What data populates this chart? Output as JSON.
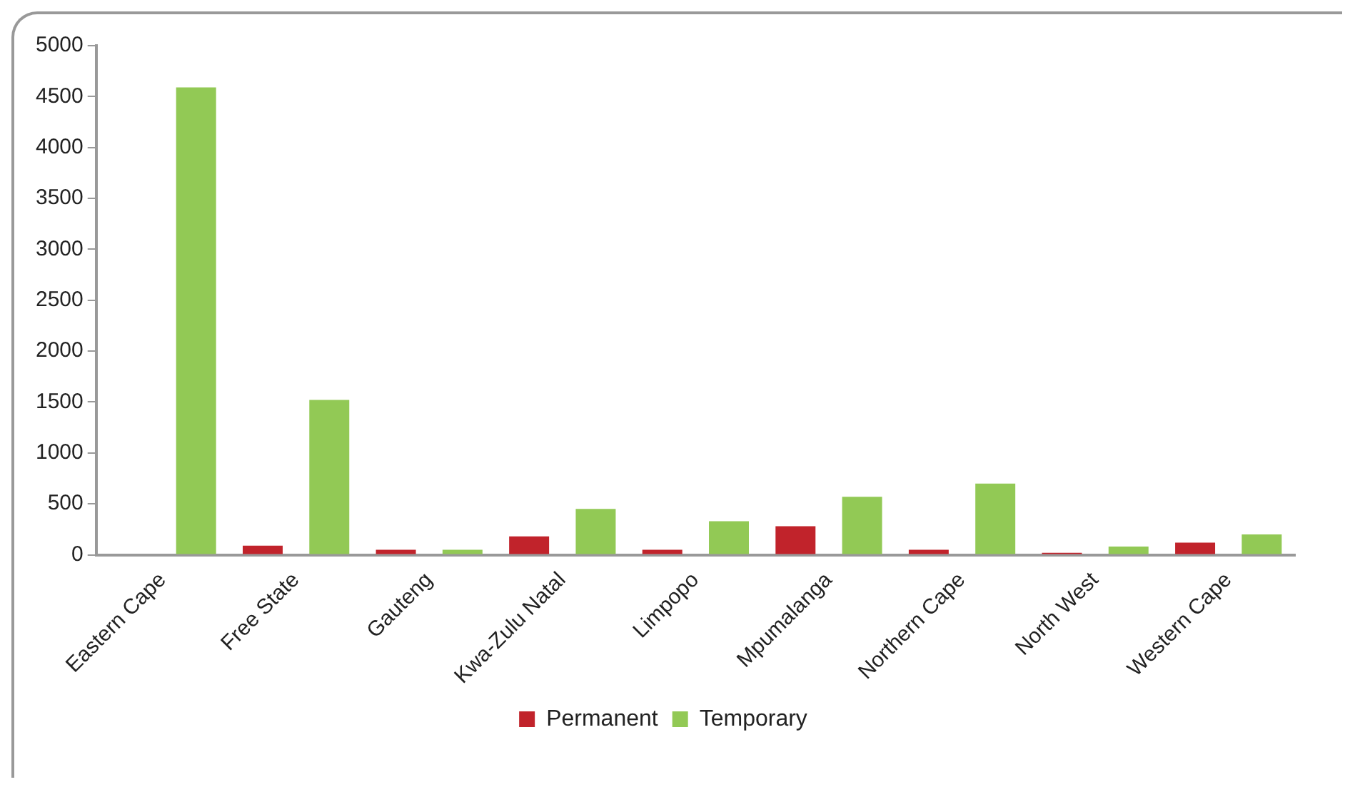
{
  "chart_data": {
    "type": "bar",
    "categories": [
      "Eastern Cape",
      "Free State",
      "Gauteng",
      "Kwa-Zulu Natal",
      "Limpopo",
      "Mpumalanga",
      "Northern Cape",
      "North West",
      "Western Cape"
    ],
    "series": [
      {
        "name": "Permanent",
        "color": "#c1232b",
        "values": [
          0,
          90,
          50,
          180,
          50,
          280,
          50,
          20,
          120
        ]
      },
      {
        "name": "Temporary",
        "color": "#92c955",
        "values": [
          4590,
          1520,
          50,
          450,
          330,
          570,
          700,
          80,
          200
        ]
      }
    ],
    "ylim": [
      0,
      5000
    ],
    "yticks": [
      0,
      500,
      1000,
      1500,
      2000,
      2500,
      3000,
      3500,
      4000,
      4500,
      5000
    ],
    "grid": false,
    "legend": "bottom"
  }
}
